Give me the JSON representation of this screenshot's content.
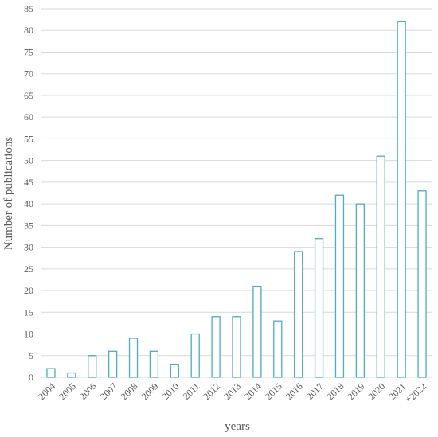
{
  "chart_data": {
    "type": "bar",
    "categories": [
      "2004",
      "2005",
      "2006",
      "2007",
      "2008",
      "2009",
      "2010",
      "2011",
      "2012",
      "2013",
      "2014",
      "2015",
      "2016",
      "2017",
      "2018",
      "2019",
      "2020",
      "2021",
      "*2022"
    ],
    "values": [
      2,
      1,
      5,
      6,
      9,
      6,
      3,
      10,
      14,
      14,
      21,
      13,
      29,
      32,
      42,
      40,
      51,
      82,
      43
    ],
    "xlabel": "years",
    "ylabel": "Number of publications",
    "ylim": [
      0,
      85
    ],
    "yticks": [
      0,
      5,
      10,
      15,
      20,
      25,
      30,
      35,
      40,
      45,
      50,
      55,
      60,
      65,
      70,
      75,
      80,
      85
    ],
    "grid": true,
    "legend": "none",
    "colors": {
      "bar_stroke": "#4bacc6",
      "grid": "#d9d9d9",
      "text": "#595959"
    }
  }
}
